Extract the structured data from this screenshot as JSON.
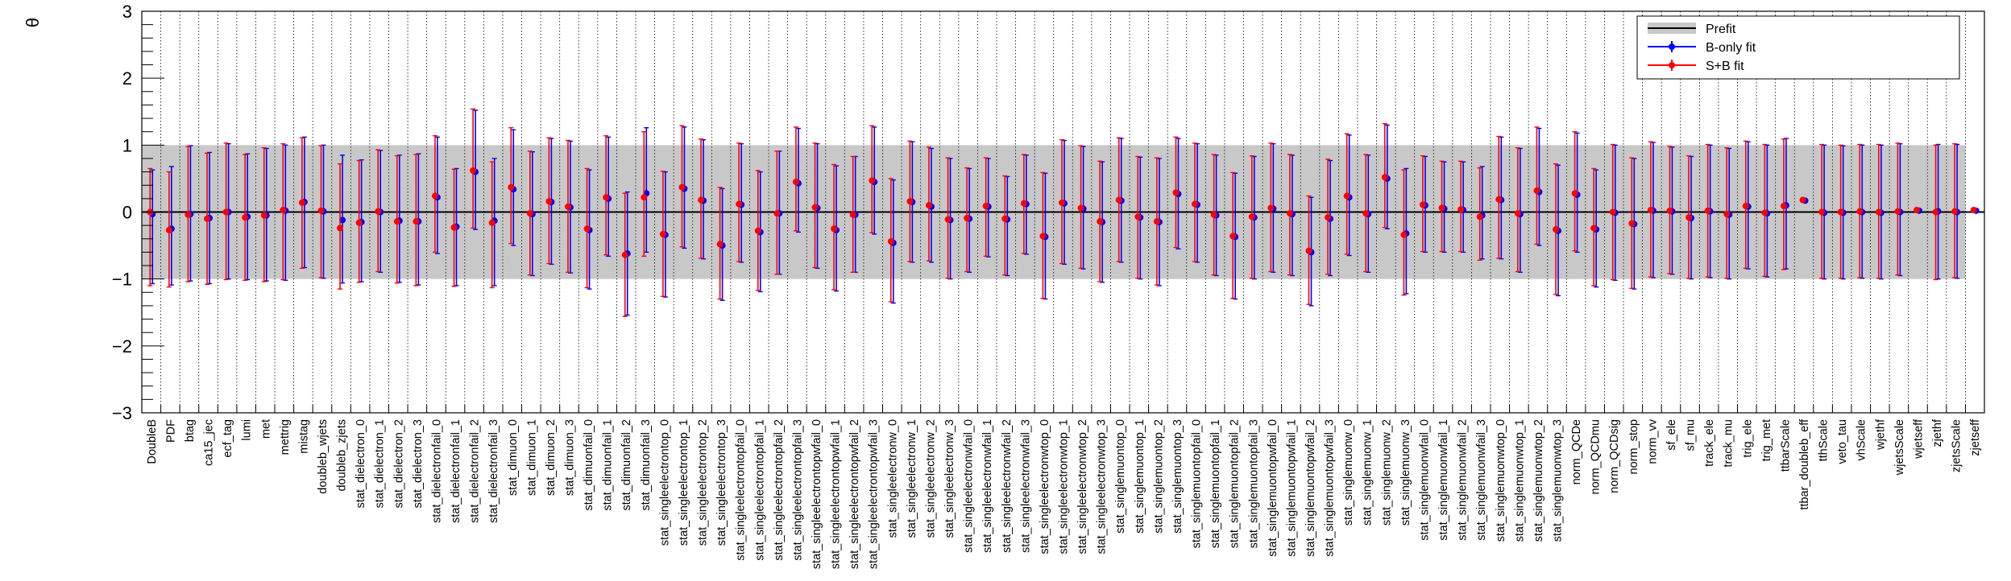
{
  "chart_data": {
    "type": "scatter",
    "ylabel": "θ",
    "ylim": [
      -3,
      3
    ],
    "yticks": [
      "−3",
      "−2",
      "−1",
      "0",
      "1",
      "2",
      "3"
    ],
    "prefit_band": [
      -1,
      1
    ],
    "grid": {
      "x_dotted": true,
      "y": false
    },
    "legend": {
      "placement": "top-right",
      "entries": [
        "Prefit",
        "B-only fit",
        "S+B fit"
      ]
    },
    "colors": {
      "b_only": "#0000ff",
      "s_b": "#ff0000",
      "band": "#c8c8c8",
      "prefit_line": "#000000"
    },
    "categories": [
      "DoubleB",
      "PDF",
      "btag",
      "ca15_jec",
      "ecf_tag",
      "lumi",
      "met",
      "mettrig",
      "mistag",
      "doubleb_wjets",
      "doubleb_zjets",
      "stat_dielectron_0",
      "stat_dielectron_1",
      "stat_dielectron_2",
      "stat_dielectron_3",
      "stat_dielectronfail_0",
      "stat_dielectronfail_1",
      "stat_dielectronfail_2",
      "stat_dielectronfail_3",
      "stat_dimuon_0",
      "stat_dimuon_1",
      "stat_dimuon_2",
      "stat_dimuon_3",
      "stat_dimuonfail_0",
      "stat_dimuonfail_1",
      "stat_dimuonfail_2",
      "stat_dimuonfail_3",
      "stat_singleelectrontop_0",
      "stat_singleelectrontop_1",
      "stat_singleelectrontop_2",
      "stat_singleelectrontop_3",
      "stat_singleelectrontopfail_0",
      "stat_singleelectrontopfail_1",
      "stat_singleelectrontopfail_2",
      "stat_singleelectrontopfail_3",
      "stat_singleelectrontopwfail_0",
      "stat_singleelectrontopwfail_1",
      "stat_singleelectrontopwfail_2",
      "stat_singleelectrontopwfail_3",
      "stat_singleelectronw_0",
      "stat_singleelectronw_1",
      "stat_singleelectronw_2",
      "stat_singleelectronw_3",
      "stat_singleelectronwfail_0",
      "stat_singleelectronwfail_1",
      "stat_singleelectronwfail_2",
      "stat_singleelectronwfail_3",
      "stat_singleelectronwtop_0",
      "stat_singleelectronwtop_1",
      "stat_singleelectronwtop_2",
      "stat_singleelectronwtop_3",
      "stat_singlemuontop_0",
      "stat_singlemuontop_1",
      "stat_singlemuontop_2",
      "stat_singlemuontop_3",
      "stat_singlemuontopfail_0",
      "stat_singlemuontopfail_1",
      "stat_singlemuontopfail_2",
      "stat_singlemuontopfail_3",
      "stat_singlemuontopwfail_0",
      "stat_singlemuontopwfail_1",
      "stat_singlemuontopwfail_2",
      "stat_singlemuontopwfail_3",
      "stat_singlemuonw_0",
      "stat_singlemuonw_1",
      "stat_singlemuonw_2",
      "stat_singlemuonw_3",
      "stat_singlemuonwfail_0",
      "stat_singlemuonwfail_1",
      "stat_singlemuonwfail_2",
      "stat_singlemuonwfail_3",
      "stat_singlemuonwtop_0",
      "stat_singlemuonwtop_1",
      "stat_singlemuonwtop_2",
      "stat_singlemuonwtop_3",
      "norm_QCDe",
      "norm_QCDmu",
      "norm_QCDsig",
      "norm_stop",
      "norm_vv",
      "sf_ele",
      "sf_mu",
      "track_ele",
      "track_mu",
      "trig_ele",
      "trig_met",
      "ttbarScale",
      "ttbar_doubleb_eff",
      "tthScale",
      "veto_tau",
      "vhScale",
      "wjethf",
      "wjetsScale",
      "wjetseff",
      "zjethf",
      "zjetsScale",
      "zjetseff"
    ],
    "b_only": {
      "values": [
        -0.03,
        -0.25,
        -0.03,
        -0.09,
        0.0,
        -0.07,
        -0.05,
        0.02,
        0.15,
        0.01,
        -0.12,
        -0.15,
        0.0,
        -0.13,
        -0.14,
        0.22,
        -0.22,
        0.6,
        -0.13,
        0.34,
        -0.03,
        0.15,
        0.07,
        -0.27,
        0.2,
        -0.62,
        0.28,
        -0.34,
        0.35,
        0.17,
        -0.5,
        0.11,
        -0.3,
        -0.02,
        0.43,
        0.06,
        -0.27,
        -0.04,
        0.45,
        -0.46,
        0.15,
        0.08,
        -0.12,
        -0.1,
        0.08,
        -0.11,
        0.12,
        -0.37,
        0.13,
        0.05,
        -0.15,
        0.17,
        -0.08,
        -0.15,
        0.27,
        0.11,
        -0.05,
        -0.37,
        -0.08,
        0.05,
        -0.03,
        -0.6,
        -0.1,
        0.22,
        -0.03,
        0.5,
        -0.32,
        0.1,
        0.05,
        0.03,
        -0.05,
        0.18,
        -0.03,
        0.3,
        -0.28,
        0.26,
        -0.26,
        -0.01,
        -0.18,
        0.02,
        0.01,
        -0.09,
        0.01,
        -0.04,
        0.08,
        -0.02,
        0.1,
        0.17,
        -0.01,
        -0.01,
        0.0,
        -0.01,
        0.0,
        0.02,
        0.01,
        0.0,
        0.02
      ],
      "lo": [
        -1.07,
        -1.09,
        -1.03,
        -1.07,
        -1.0,
        -1.01,
        -1.03,
        -1.02,
        -0.83,
        -0.99,
        -1.06,
        -1.04,
        -0.9,
        -1.05,
        -1.09,
        -0.62,
        -1.1,
        -0.26,
        -1.1,
        -0.5,
        -0.95,
        -0.78,
        -0.91,
        -1.15,
        -0.66,
        -1.54,
        -0.6,
        -1.27,
        -0.54,
        -0.7,
        -1.32,
        -0.75,
        -1.19,
        -0.93,
        -0.3,
        -0.84,
        -1.18,
        -0.9,
        -0.33,
        -1.36,
        -0.75,
        -0.75,
        -1.0,
        -0.9,
        -0.67,
        -0.95,
        -0.63,
        -1.3,
        -0.78,
        -0.85,
        -1.05,
        -0.75,
        -1.0,
        -1.1,
        -0.55,
        -0.75,
        -0.95,
        -1.3,
        -1.0,
        -0.9,
        -0.95,
        -1.4,
        -0.95,
        -0.65,
        -0.9,
        -0.25,
        -1.22,
        -0.6,
        -0.6,
        -0.6,
        -0.7,
        -0.7,
        -0.9,
        -0.5,
        -1.25,
        -0.6,
        -1.12,
        -1.02,
        -1.15,
        -0.98,
        -0.93,
        -1.0,
        -0.98,
        -1.0,
        -0.85,
        -0.97,
        -0.85,
        0.15,
        -1.0,
        -1.0,
        -0.99,
        -1.0,
        -0.95,
        0.01,
        -1.0,
        -0.99,
        0.0
      ],
      "hi": [
        0.63,
        0.68,
        0.99,
        0.89,
        1.02,
        0.87,
        0.95,
        1.0,
        1.12,
        1.0,
        0.85,
        0.78,
        0.92,
        0.85,
        0.87,
        1.12,
        0.65,
        1.52,
        0.8,
        1.23,
        0.9,
        1.1,
        1.06,
        0.63,
        1.12,
        0.3,
        1.26,
        0.6,
        1.27,
        1.08,
        0.35,
        1.02,
        0.6,
        0.91,
        1.25,
        1.02,
        0.69,
        0.83,
        1.27,
        0.48,
        1.05,
        0.95,
        0.8,
        0.65,
        0.8,
        0.53,
        0.85,
        0.58,
        1.07,
        0.98,
        0.75,
        1.1,
        0.82,
        0.8,
        1.1,
        1.02,
        0.85,
        0.58,
        0.83,
        1.02,
        0.85,
        0.22,
        0.77,
        1.15,
        0.85,
        1.3,
        0.65,
        0.83,
        0.75,
        0.75,
        0.68,
        1.12,
        0.95,
        1.25,
        0.7,
        1.18,
        0.63,
        1.0,
        0.8,
        1.04,
        0.97,
        0.83,
        1.0,
        0.95,
        1.05,
        1.0,
        1.1,
        0.19,
        1.0,
        0.99,
        1.0,
        1.0,
        1.02,
        0.04,
        1.01,
        1.01,
        0.03
      ]
    },
    "s_b": {
      "values": [
        0.0,
        -0.27,
        -0.04,
        -0.1,
        0.0,
        -0.08,
        -0.05,
        0.03,
        0.14,
        0.02,
        -0.24,
        -0.16,
        0.01,
        -0.14,
        -0.14,
        0.24,
        -0.23,
        0.62,
        -0.16,
        0.37,
        -0.02,
        0.16,
        0.08,
        -0.25,
        0.22,
        -0.64,
        0.22,
        -0.33,
        0.37,
        0.18,
        -0.48,
        0.12,
        -0.28,
        -0.02,
        0.45,
        0.07,
        -0.25,
        -0.04,
        0.47,
        -0.44,
        0.16,
        0.1,
        -0.11,
        -0.09,
        0.09,
        -0.1,
        0.13,
        -0.36,
        0.14,
        0.06,
        -0.14,
        0.18,
        -0.07,
        -0.14,
        0.29,
        0.12,
        -0.04,
        -0.36,
        -0.07,
        0.06,
        -0.02,
        -0.58,
        -0.08,
        0.24,
        -0.02,
        0.52,
        -0.34,
        0.11,
        0.06,
        0.04,
        -0.07,
        0.19,
        -0.02,
        0.32,
        -0.26,
        0.28,
        -0.24,
        0.0,
        -0.17,
        0.03,
        0.02,
        -0.08,
        0.02,
        -0.03,
        0.09,
        -0.01,
        0.09,
        0.18,
        0.0,
        0.0,
        0.01,
        0.0,
        0.01,
        0.03,
        0.0,
        0.01,
        0.03
      ],
      "lo": [
        -1.1,
        -1.12,
        -1.04,
        -1.08,
        -1.01,
        -1.02,
        -1.04,
        -1.01,
        -0.84,
        -0.98,
        -1.15,
        -1.05,
        -0.89,
        -1.06,
        -1.1,
        -0.6,
        -1.11,
        -0.24,
        -1.13,
        -0.47,
        -0.94,
        -0.77,
        -0.9,
        -1.13,
        -0.64,
        -1.56,
        -0.66,
        -1.26,
        -0.52,
        -0.69,
        -1.3,
        -0.74,
        -1.17,
        -0.93,
        -0.28,
        -0.83,
        -1.16,
        -0.9,
        -0.31,
        -1.34,
        -0.74,
        -0.73,
        -0.99,
        -0.89,
        -0.66,
        -0.94,
        -0.62,
        -1.29,
        -0.77,
        -0.84,
        -1.04,
        -0.74,
        -0.99,
        -1.09,
        -0.53,
        -0.74,
        -0.94,
        -1.29,
        -0.99,
        -0.89,
        -0.94,
        -1.38,
        -0.93,
        -0.63,
        -0.89,
        -0.23,
        -1.24,
        -0.59,
        -0.59,
        -0.59,
        -0.72,
        -0.69,
        -0.89,
        -0.48,
        -1.23,
        -0.58,
        -1.1,
        -1.01,
        -1.14,
        -0.97,
        -0.92,
        -0.99,
        -0.97,
        -0.99,
        -0.84,
        -0.96,
        -0.86,
        0.16,
        -0.99,
        -0.99,
        -0.98,
        -0.99,
        -0.94,
        0.02,
        -1.01,
        -0.98,
        0.01
      ],
      "hi": [
        0.65,
        0.6,
        0.98,
        0.88,
        1.03,
        0.86,
        0.96,
        1.02,
        1.11,
        0.99,
        0.72,
        0.77,
        0.93,
        0.84,
        0.86,
        1.14,
        0.64,
        1.54,
        0.75,
        1.26,
        0.91,
        1.11,
        1.07,
        0.65,
        1.14,
        0.28,
        1.2,
        0.61,
        1.29,
        1.09,
        0.37,
        1.03,
        0.62,
        0.91,
        1.27,
        1.03,
        0.71,
        0.83,
        1.29,
        0.5,
        1.06,
        0.97,
        0.81,
        0.66,
        0.81,
        0.54,
        0.86,
        0.59,
        1.08,
        0.99,
        0.76,
        1.11,
        0.83,
        0.81,
        1.12,
        1.03,
        0.86,
        0.59,
        0.84,
        1.03,
        0.86,
        0.24,
        0.79,
        1.17,
        0.86,
        1.32,
        0.63,
        0.84,
        0.76,
        0.76,
        0.66,
        1.13,
        0.96,
        1.27,
        0.72,
        1.2,
        0.65,
        1.01,
        0.81,
        1.05,
        0.98,
        0.84,
        1.01,
        0.96,
        1.06,
        1.01,
        1.09,
        0.2,
        1.01,
        1.0,
        1.01,
        1.01,
        1.03,
        0.05,
        1.0,
        1.02,
        0.04
      ]
    }
  }
}
